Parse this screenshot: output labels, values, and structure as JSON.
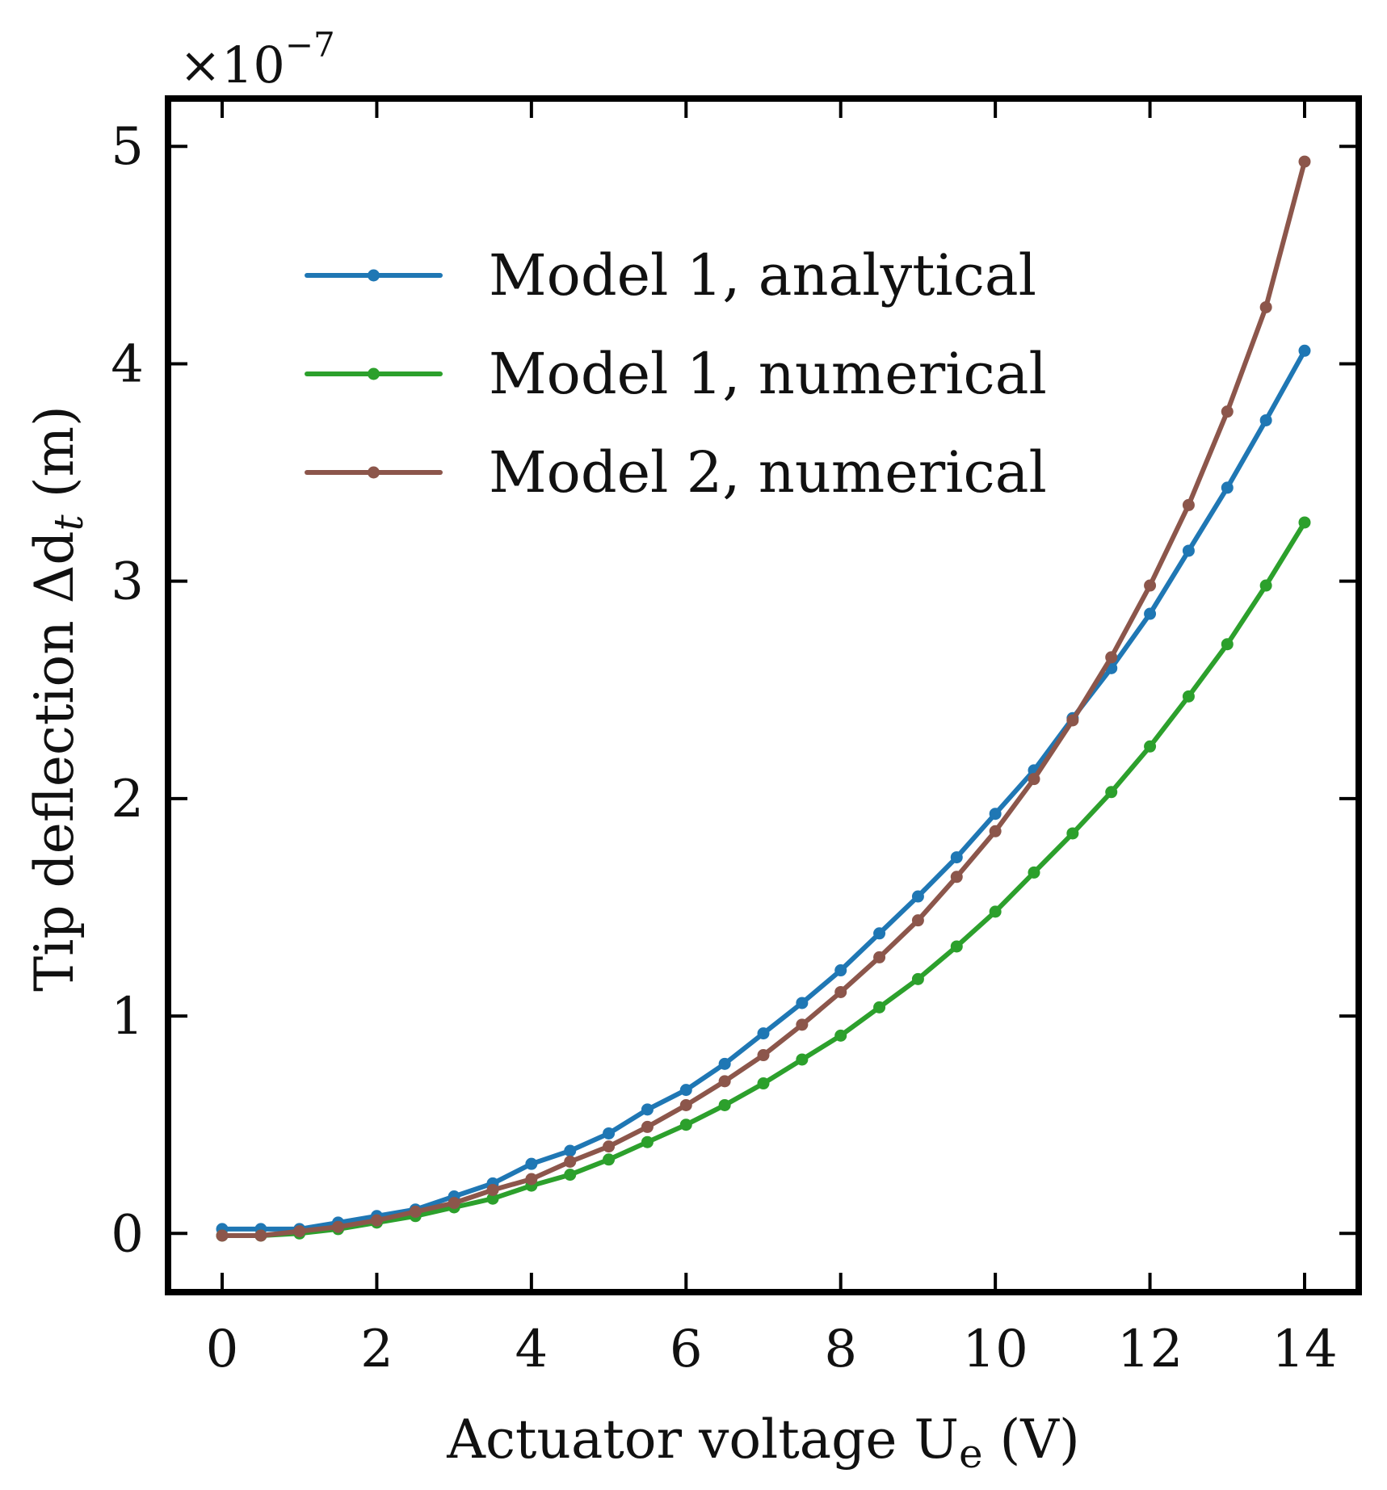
{
  "chart_data": {
    "type": "line",
    "title": "",
    "xlabel": "Actuator voltage U",
    "xlabel_subscript": "e",
    "xlabel_suffix": " (V)",
    "ylabel": "Tip deflection Δd",
    "ylabel_subscript": "t",
    "ylabel_suffix": " (m)",
    "y_offset_text": "×10",
    "y_offset_exponent": "−7",
    "x_ticks": [
      0,
      2,
      4,
      6,
      8,
      10,
      12,
      14
    ],
    "y_ticks": [
      0,
      1,
      2,
      3,
      4,
      5
    ],
    "xlim": [
      -0.7,
      14.7
    ],
    "ylim": [
      -0.27,
      5.22
    ],
    "legend_position": "upper-left",
    "x": [
      0,
      0.5,
      1,
      1.5,
      2,
      2.5,
      3,
      3.5,
      4,
      4.5,
      5,
      5.5,
      6,
      6.5,
      7,
      7.5,
      8,
      8.5,
      9,
      9.5,
      10,
      10.5,
      11,
      11.5,
      12,
      12.5,
      13,
      13.5,
      14
    ],
    "series": [
      {
        "name": "Model 1, analytical",
        "color": "#1f77b4",
        "values": [
          0.02,
          0.02,
          0.02,
          0.05,
          0.08,
          0.11,
          0.17,
          0.23,
          0.32,
          0.38,
          0.46,
          0.57,
          0.66,
          0.78,
          0.92,
          1.06,
          1.21,
          1.38,
          1.55,
          1.73,
          1.93,
          2.13,
          2.37,
          2.6,
          2.85,
          3.14,
          3.43,
          3.74,
          4.06
        ]
      },
      {
        "name": "Model 1, numerical",
        "color": "#2ca02c",
        "values": [
          -0.01,
          -0.01,
          0.0,
          0.02,
          0.05,
          0.08,
          0.12,
          0.16,
          0.22,
          0.27,
          0.34,
          0.42,
          0.5,
          0.59,
          0.69,
          0.8,
          0.91,
          1.04,
          1.17,
          1.32,
          1.48,
          1.66,
          1.84,
          2.03,
          2.24,
          2.47,
          2.71,
          2.98,
          3.27
        ]
      },
      {
        "name": "Model 2, numerical",
        "color": "#8c564b",
        "values": [
          -0.01,
          -0.01,
          0.01,
          0.03,
          0.06,
          0.1,
          0.14,
          0.2,
          0.25,
          0.33,
          0.4,
          0.49,
          0.59,
          0.7,
          0.82,
          0.96,
          1.11,
          1.27,
          1.44,
          1.64,
          1.85,
          2.09,
          2.36,
          2.65,
          2.98,
          3.35,
          3.78,
          4.26,
          4.93
        ]
      }
    ]
  }
}
